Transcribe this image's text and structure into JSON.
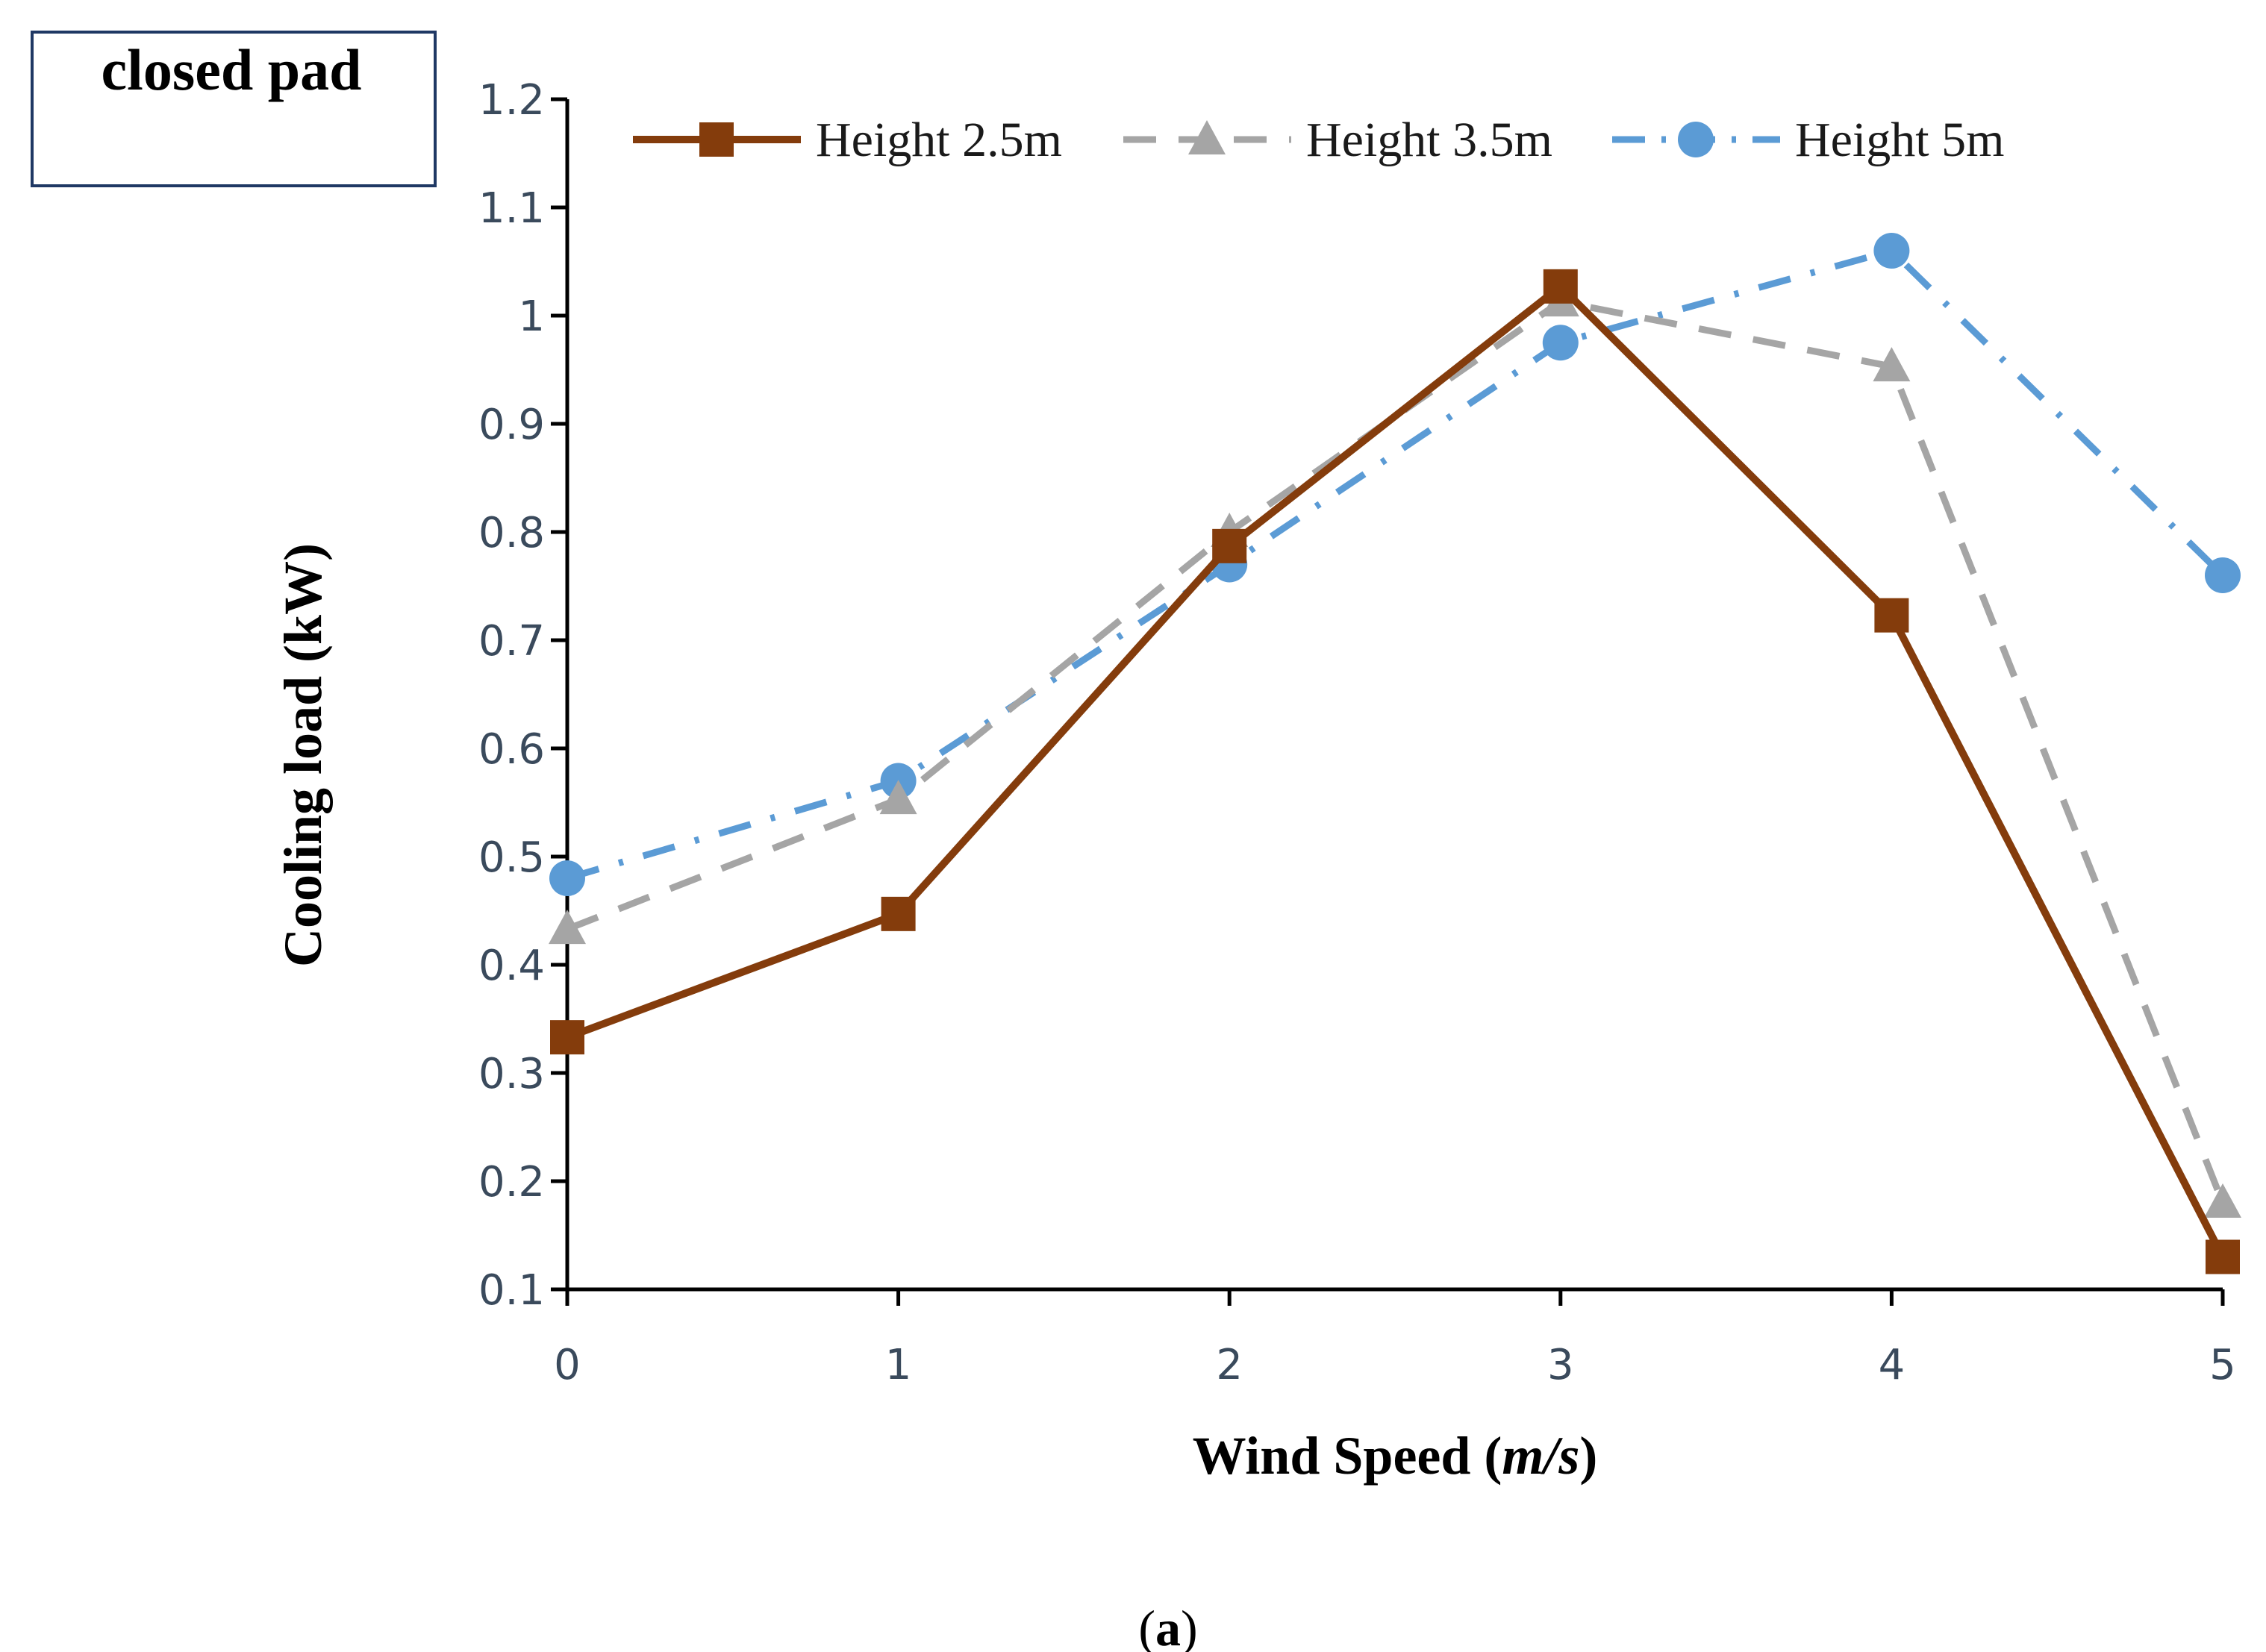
{
  "chart_data": {
    "type": "line",
    "box_label": "closed pad",
    "caption": {
      "open": "(",
      "letter": "a",
      "close": ")"
    },
    "xlabel": {
      "main": "Wind Speed (",
      "unit": "m/s",
      "end": ")"
    },
    "ylabel": "Cooling  load (kW)",
    "x": [
      0,
      1,
      2,
      3,
      4,
      5
    ],
    "x_ticks": [
      "0",
      "1",
      "2",
      "3",
      "4",
      "5"
    ],
    "xlim": [
      0,
      5
    ],
    "ylim": [
      0.1,
      1.2
    ],
    "y_ticks": [
      "0.1",
      "0.2",
      "0.3",
      "0.4",
      "0.5",
      "0.6",
      "0.7",
      "0.8",
      "0.9",
      "1",
      "1.1",
      "1.2"
    ],
    "grid": false,
    "legend_position": "top",
    "series": [
      {
        "name": "Height 2.5m",
        "values": [
          0.333,
          0.447,
          0.787,
          1.027,
          0.723,
          0.13
        ],
        "color": "#843c0c",
        "marker": "square",
        "style": "solid"
      },
      {
        "name": "Height 3.5m",
        "values": [
          0.433,
          0.553,
          0.8,
          1.013,
          0.953,
          0.18
        ],
        "color": "#a5a5a5",
        "marker": "triangle",
        "style": "dashed"
      },
      {
        "name": "Height 5m",
        "values": [
          0.48,
          0.57,
          0.77,
          0.975,
          1.06,
          0.76
        ],
        "color": "#5b9bd5",
        "marker": "circle",
        "style": "dashdot"
      }
    ]
  }
}
